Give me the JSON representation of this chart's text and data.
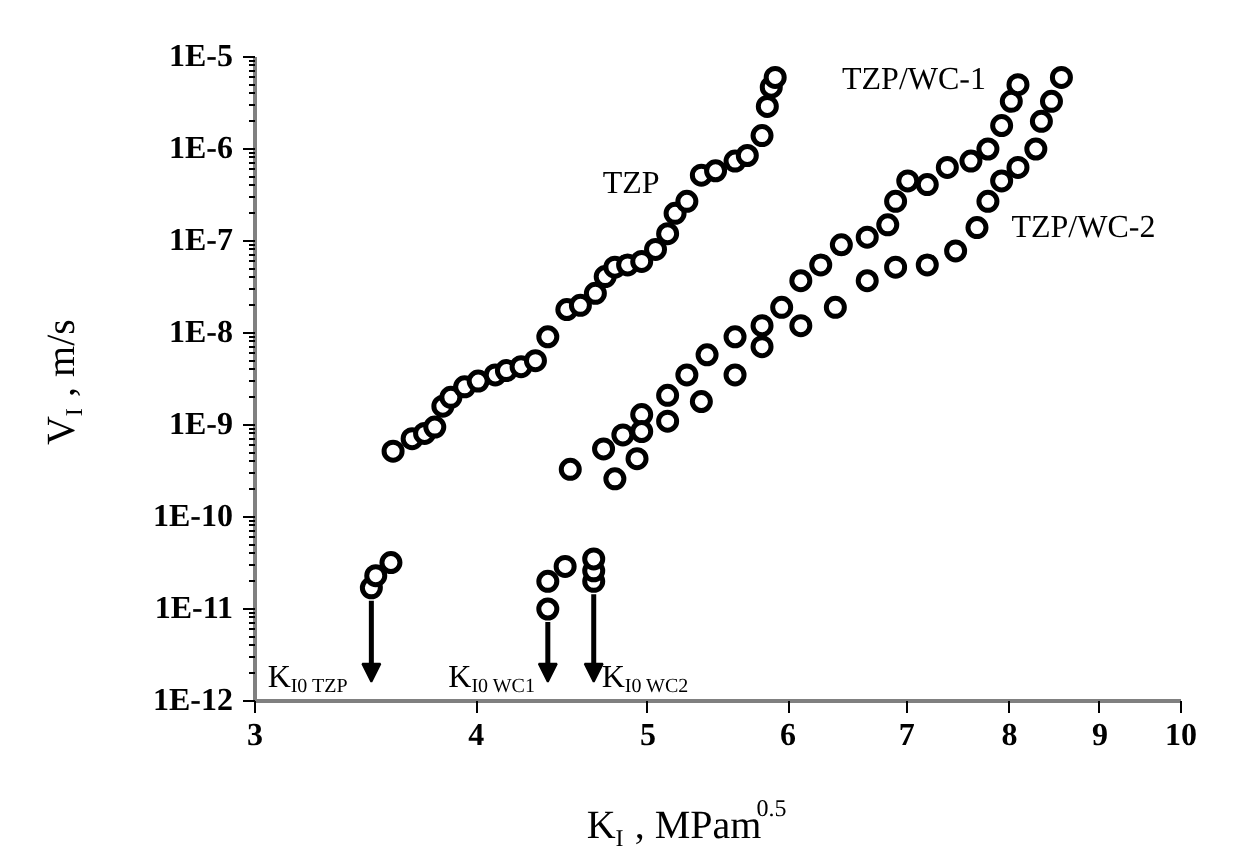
{
  "chart_data": {
    "type": "scatter",
    "xlabel": "K$_{I}$, MPam$^{0.5}$",
    "ylabel": "V$_{I}$, m/s",
    "log": "xy",
    "marker": "circle",
    "grid": false,
    "xlim": [
      3,
      10
    ],
    "xticks": [
      3,
      4,
      5,
      6,
      7,
      8,
      9,
      10
    ],
    "ylim": [
      1e-12,
      1e-05
    ],
    "yticks": [
      {
        "value": 1e-12,
        "label": "1E-12"
      },
      {
        "value": 1e-11,
        "label": "1E-11"
      },
      {
        "value": 1e-10,
        "label": "1E-10"
      },
      {
        "value": 1e-09,
        "label": "1E-9"
      },
      {
        "value": 1e-08,
        "label": "1E-8"
      },
      {
        "value": 1e-07,
        "label": "1E-7"
      },
      {
        "value": 1e-06,
        "label": "1E-6"
      },
      {
        "value": 1e-05,
        "label": "1E-5"
      }
    ],
    "series": [
      {
        "name": "TZP",
        "color": "#000000",
        "x": [
          3.49,
          3.51,
          3.58,
          3.59,
          3.68,
          3.74,
          3.79,
          3.83,
          3.87,
          3.94,
          4.01,
          4.1,
          4.16,
          4.24,
          4.32,
          4.39,
          4.5,
          4.58,
          4.67,
          4.73,
          4.79,
          4.87,
          4.96,
          5.05,
          5.13,
          5.18,
          5.26,
          5.36,
          5.46,
          5.6,
          5.69,
          5.8,
          5.84,
          5.87,
          5.9
        ],
        "values": [
          1.7e-11,
          2.3e-11,
          3.2e-11,
          5.2e-10,
          7.1e-10,
          8.1e-10,
          9.5e-10,
          1.6e-09,
          2e-09,
          2.6e-09,
          3e-09,
          3.5e-09,
          3.9e-09,
          4.3e-09,
          5e-09,
          9.1e-09,
          1.8e-08,
          2e-08,
          2.7e-08,
          4.1e-08,
          5.2e-08,
          5.5e-08,
          6e-08,
          8.1e-08,
          1.2e-07,
          2e-07,
          2.7e-07,
          5.2e-07,
          5.8e-07,
          7.4e-07,
          8.5e-07,
          1.4e-06,
          2.9e-06,
          4.7e-06,
          6e-06
        ]
      },
      {
        "name": "TZP/WC-1",
        "color": "#000000",
        "x": [
          4.39,
          4.39,
          4.49,
          4.52,
          4.72,
          4.84,
          4.96,
          5.13,
          5.26,
          5.4,
          5.6,
          5.8,
          5.95,
          6.1,
          6.26,
          6.43,
          6.65,
          6.83,
          6.9,
          7.01,
          7.19,
          7.38,
          7.61,
          7.78,
          7.92,
          8.02,
          8.09
        ],
        "values": [
          1e-11,
          2e-11,
          2.9e-11,
          3.3e-10,
          5.5e-10,
          7.8e-10,
          1.3e-09,
          2.1e-09,
          3.5e-09,
          5.8e-09,
          9.1e-09,
          1.2e-08,
          1.9e-08,
          3.7e-08,
          5.5e-08,
          9.1e-08,
          1.1e-07,
          1.5e-07,
          2.7e-07,
          4.5e-07,
          4.1e-07,
          6.3e-07,
          7.4e-07,
          1e-06,
          1.8e-06,
          3.3e-06,
          5e-06
        ]
      },
      {
        "name": "TZP/WC-2",
        "color": "#000000",
        "x": [
          4.66,
          4.66,
          4.66,
          4.79,
          4.93,
          4.96,
          5.13,
          5.36,
          5.6,
          5.8,
          6.1,
          6.38,
          6.65,
          6.9,
          7.19,
          7.46,
          7.67,
          7.78,
          7.92,
          8.09,
          8.28,
          8.34,
          8.45,
          8.56
        ],
        "values": [
          2e-11,
          2.6e-11,
          3.5e-11,
          2.6e-10,
          4.3e-10,
          8.5e-10,
          1.1e-09,
          1.8e-09,
          3.5e-09,
          7.1e-09,
          1.2e-08,
          1.9e-08,
          3.7e-08,
          5.2e-08,
          5.5e-08,
          7.8e-08,
          1.4e-07,
          2.7e-07,
          4.5e-07,
          6.3e-07,
          1e-06,
          2e-06,
          3.3e-06,
          6e-06
        ]
      }
    ],
    "annotations": [
      {
        "text": "K$_{I0 TZP}$",
        "x": 3.49,
        "y": 1.7e-11
      },
      {
        "text": "K$_{I0 WC1}$",
        "x": 4.39,
        "y": 1e-11
      },
      {
        "text": "K$_{I0 WC2}$",
        "x": 4.66,
        "y": 2e-11
      }
    ]
  }
}
